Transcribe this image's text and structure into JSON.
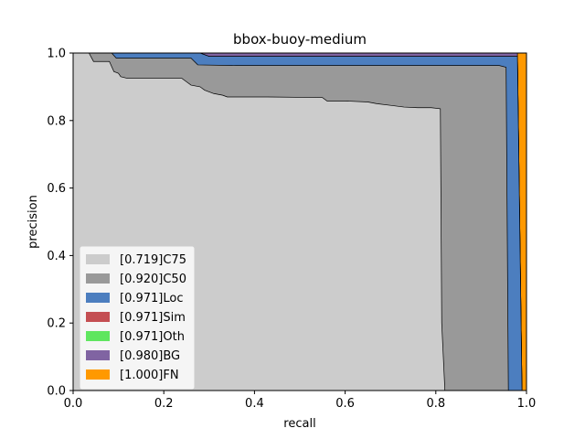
{
  "chart_data": {
    "type": "area",
    "title": "bbox-buoy-medium",
    "xlabel": "recall",
    "ylabel": "precision",
    "xlim": [
      0,
      1
    ],
    "ylim": [
      0,
      1
    ],
    "xticks": [
      "0.0",
      "0.2",
      "0.4",
      "0.6",
      "0.8",
      "1.0"
    ],
    "yticks": [
      "0.0",
      "0.2",
      "0.4",
      "0.6",
      "0.8",
      "1.0"
    ],
    "grid": false,
    "legend": "lower-left",
    "series": [
      {
        "name": "[0.719]C75",
        "color": "#cccccc",
        "points": [
          [
            0,
            1
          ],
          [
            0.035,
            1
          ],
          [
            0.045,
            0.975
          ],
          [
            0.08,
            0.975
          ],
          [
            0.09,
            0.945
          ],
          [
            0.1,
            0.94
          ],
          [
            0.105,
            0.93
          ],
          [
            0.12,
            0.925
          ],
          [
            0.24,
            0.925
          ],
          [
            0.25,
            0.915
          ],
          [
            0.26,
            0.905
          ],
          [
            0.28,
            0.9
          ],
          [
            0.29,
            0.89
          ],
          [
            0.31,
            0.88
          ],
          [
            0.33,
            0.875
          ],
          [
            0.34,
            0.87
          ],
          [
            0.43,
            0.87
          ],
          [
            0.55,
            0.868
          ],
          [
            0.56,
            0.858
          ],
          [
            0.6,
            0.858
          ],
          [
            0.65,
            0.855
          ],
          [
            0.67,
            0.85
          ],
          [
            0.7,
            0.845
          ],
          [
            0.73,
            0.84
          ],
          [
            0.76,
            0.838
          ],
          [
            0.79,
            0.838
          ],
          [
            0.81,
            0.835
          ],
          [
            0.813,
            0.2
          ],
          [
            0.82,
            0
          ]
        ]
      },
      {
        "name": "[0.920]C50",
        "color": "#999999",
        "points": [
          [
            0,
            1
          ],
          [
            0.085,
            1
          ],
          [
            0.095,
            0.985
          ],
          [
            0.26,
            0.985
          ],
          [
            0.275,
            0.965
          ],
          [
            0.36,
            0.963
          ],
          [
            0.94,
            0.963
          ],
          [
            0.955,
            0.958
          ],
          [
            0.96,
            0
          ]
        ]
      },
      {
        "name": "[0.971]Loc",
        "color": "#4c7ebf",
        "points": [
          [
            0,
            1
          ],
          [
            0.28,
            1
          ],
          [
            0.3,
            0.99
          ],
          [
            0.4,
            0.99
          ],
          [
            0.48,
            0.99
          ],
          [
            0.98,
            0.99
          ],
          [
            0.985,
            0.5
          ],
          [
            0.99,
            0
          ]
        ]
      },
      {
        "name": "[0.971]Sim",
        "color": "#c44e52",
        "points": [
          [
            0,
            1
          ],
          [
            0.28,
            1
          ],
          [
            0.3,
            0.99
          ],
          [
            0.98,
            0.99
          ],
          [
            0.985,
            0.5
          ],
          [
            0.99,
            0
          ]
        ]
      },
      {
        "name": "[0.971]Oth",
        "color": "#5fe65f",
        "points": [
          [
            0,
            1
          ],
          [
            0.28,
            1
          ],
          [
            0.3,
            0.99
          ],
          [
            0.98,
            0.99
          ],
          [
            0.985,
            0.5
          ],
          [
            0.99,
            0
          ]
        ]
      },
      {
        "name": "[0.980]BG",
        "color": "#8064a2",
        "points": [
          [
            0,
            1
          ],
          [
            0.98,
            1
          ],
          [
            0.985,
            0.5
          ],
          [
            0.99,
            0
          ]
        ]
      },
      {
        "name": "[1.000]FN",
        "color": "#ff9900",
        "points": [
          [
            0,
            1
          ],
          [
            1,
            1
          ],
          [
            1,
            0
          ]
        ]
      }
    ]
  }
}
